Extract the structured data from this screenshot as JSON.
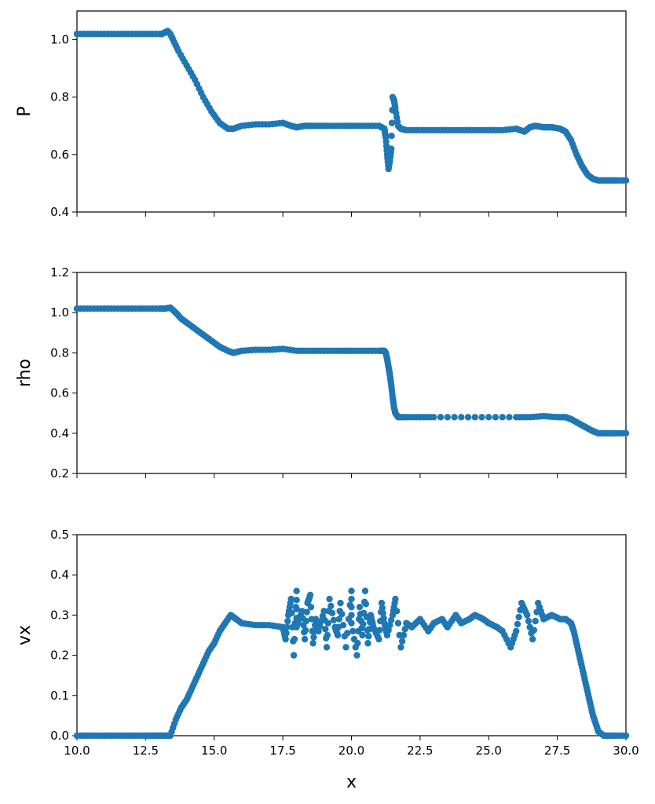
{
  "chart_data": [
    {
      "type": "scatter",
      "ylabel": "P",
      "xlim": [
        10,
        30
      ],
      "ylim": [
        0.4,
        1.1
      ],
      "yticks": [
        "0.4",
        "0.6",
        "0.8",
        "1.0"
      ],
      "ytick_values": [
        0.4,
        0.6,
        0.8,
        1.0
      ],
      "color": "#1f77b4",
      "x": [
        10.0,
        10.5,
        11.0,
        11.5,
        12.0,
        12.5,
        13.0,
        13.1,
        13.2,
        13.3,
        13.4,
        13.5,
        13.7,
        14.0,
        14.3,
        14.6,
        14.9,
        15.2,
        15.5,
        15.7,
        16.0,
        16.5,
        17.0,
        17.5,
        17.8,
        18.0,
        18.3,
        18.6,
        19.0,
        19.5,
        20.0,
        20.5,
        21.0,
        21.2,
        21.25,
        21.3,
        21.35,
        21.4,
        21.45,
        21.5,
        21.55,
        21.6,
        21.7,
        21.8,
        22.0,
        22.5,
        23.0,
        23.5,
        24.0,
        24.5,
        25.0,
        25.5,
        26.0,
        26.3,
        26.5,
        26.7,
        27.0,
        27.3,
        27.6,
        27.8,
        28.0,
        28.2,
        28.4,
        28.6,
        28.8,
        29.0,
        29.3,
        29.6,
        30.0
      ],
      "y": [
        1.02,
        1.02,
        1.02,
        1.02,
        1.02,
        1.02,
        1.02,
        1.02,
        1.025,
        1.03,
        1.02,
        1.0,
        0.96,
        0.91,
        0.86,
        0.8,
        0.75,
        0.71,
        0.69,
        0.69,
        0.7,
        0.705,
        0.705,
        0.71,
        0.7,
        0.695,
        0.7,
        0.7,
        0.7,
        0.7,
        0.7,
        0.7,
        0.7,
        0.69,
        0.66,
        0.6,
        0.55,
        0.58,
        0.62,
        0.8,
        0.79,
        0.76,
        0.7,
        0.69,
        0.685,
        0.685,
        0.685,
        0.685,
        0.685,
        0.685,
        0.685,
        0.685,
        0.69,
        0.68,
        0.695,
        0.7,
        0.695,
        0.695,
        0.69,
        0.68,
        0.65,
        0.6,
        0.56,
        0.53,
        0.515,
        0.51,
        0.51,
        0.51,
        0.51
      ]
    },
    {
      "type": "scatter",
      "ylabel": "rho",
      "xlim": [
        10,
        30
      ],
      "ylim": [
        0.2,
        1.2
      ],
      "yticks": [
        "0.2",
        "0.4",
        "0.6",
        "0.8",
        "1.0",
        "1.2"
      ],
      "ytick_values": [
        0.2,
        0.4,
        0.6,
        0.8,
        1.0,
        1.2
      ],
      "color": "#1f77b4",
      "x": [
        10.0,
        10.5,
        11.0,
        11.5,
        12.0,
        12.5,
        13.0,
        13.2,
        13.4,
        13.6,
        13.8,
        14.0,
        14.3,
        14.6,
        14.9,
        15.2,
        15.5,
        15.7,
        16.0,
        16.5,
        17.0,
        17.5,
        18.0,
        18.5,
        19.0,
        19.5,
        20.0,
        20.5,
        21.0,
        21.2,
        21.25,
        21.3,
        21.35,
        21.4,
        21.45,
        21.5,
        21.55,
        21.6,
        21.7,
        22.0,
        22.5,
        23.0,
        24.0,
        25.0,
        26.0,
        26.5,
        27.0,
        27.5,
        27.8,
        28.0,
        28.2,
        28.4,
        28.6,
        28.8,
        29.0,
        29.3,
        29.6,
        30.0
      ],
      "y": [
        1.02,
        1.02,
        1.02,
        1.02,
        1.02,
        1.02,
        1.02,
        1.02,
        1.025,
        1.0,
        0.97,
        0.95,
        0.92,
        0.89,
        0.86,
        0.83,
        0.81,
        0.8,
        0.81,
        0.815,
        0.815,
        0.82,
        0.81,
        0.81,
        0.81,
        0.81,
        0.81,
        0.81,
        0.81,
        0.81,
        0.8,
        0.77,
        0.73,
        0.69,
        0.64,
        0.58,
        0.53,
        0.5,
        0.48,
        0.48,
        0.48,
        0.48,
        0.48,
        0.48,
        0.48,
        0.48,
        0.485,
        0.48,
        0.48,
        0.47,
        0.455,
        0.44,
        0.425,
        0.41,
        0.4,
        0.4,
        0.4,
        0.4
      ]
    },
    {
      "type": "scatter",
      "xlabel": "x",
      "ylabel": "vx",
      "xlim": [
        10,
        30
      ],
      "ylim": [
        0.0,
        0.5
      ],
      "xticks": [
        "10.0",
        "12.5",
        "15.0",
        "17.5",
        "20.0",
        "22.5",
        "25.0",
        "27.5",
        "30.0"
      ],
      "xtick_values": [
        10,
        12.5,
        15,
        17.5,
        20,
        22.5,
        25,
        27.5,
        30
      ],
      "yticks": [
        "0.0",
        "0.1",
        "0.2",
        "0.3",
        "0.4",
        "0.5"
      ],
      "ytick_values": [
        0.0,
        0.1,
        0.2,
        0.3,
        0.4,
        0.5
      ],
      "color": "#1f77b4",
      "x": [
        10.0,
        10.5,
        11.0,
        11.5,
        12.0,
        12.5,
        12.9,
        13.2,
        13.4,
        13.6,
        13.8,
        14.0,
        14.2,
        14.4,
        14.6,
        14.8,
        15.0,
        15.2,
        15.4,
        15.6,
        15.8,
        16.0,
        16.5,
        17.0,
        17.5,
        17.6,
        17.7,
        17.8,
        17.9,
        18.0,
        18.0,
        18.2,
        18.3,
        18.4,
        18.5,
        18.6,
        18.7,
        18.8,
        19.0,
        19.1,
        19.2,
        19.4,
        19.5,
        19.6,
        19.8,
        20.0,
        20.0,
        20.2,
        20.3,
        20.4,
        20.5,
        20.6,
        20.7,
        20.8,
        21.0,
        21.1,
        21.2,
        21.3,
        21.5,
        21.6,
        21.8,
        22.0,
        22.2,
        22.5,
        22.8,
        23.0,
        23.3,
        23.5,
        23.8,
        24.0,
        24.3,
        24.5,
        24.8,
        25.0,
        25.3,
        25.5,
        25.8,
        26.0,
        26.2,
        26.4,
        26.6,
        26.8,
        27.0,
        27.3,
        27.6,
        27.8,
        28.0,
        28.1,
        28.2,
        28.3,
        28.4,
        28.5,
        28.6,
        28.7,
        28.8,
        28.9,
        29.0,
        29.2,
        29.5,
        30.0
      ],
      "y": [
        0.0,
        0.0,
        0.0,
        0.0,
        0.0,
        0.0,
        0.0,
        0.0,
        0.0,
        0.04,
        0.07,
        0.09,
        0.12,
        0.15,
        0.18,
        0.21,
        0.23,
        0.26,
        0.28,
        0.3,
        0.29,
        0.28,
        0.275,
        0.275,
        0.27,
        0.24,
        0.3,
        0.34,
        0.2,
        0.36,
        0.27,
        0.31,
        0.24,
        0.33,
        0.35,
        0.23,
        0.29,
        0.26,
        0.31,
        0.22,
        0.34,
        0.27,
        0.25,
        0.33,
        0.22,
        0.36,
        0.28,
        0.2,
        0.32,
        0.25,
        0.36,
        0.23,
        0.3,
        0.27,
        0.24,
        0.33,
        0.28,
        0.25,
        0.3,
        0.34,
        0.22,
        0.28,
        0.27,
        0.29,
        0.26,
        0.28,
        0.29,
        0.27,
        0.3,
        0.28,
        0.29,
        0.3,
        0.29,
        0.28,
        0.27,
        0.26,
        0.22,
        0.26,
        0.33,
        0.3,
        0.24,
        0.33,
        0.29,
        0.3,
        0.29,
        0.29,
        0.28,
        0.26,
        0.23,
        0.2,
        0.17,
        0.14,
        0.11,
        0.08,
        0.05,
        0.03,
        0.01,
        0.0,
        0.0,
        0.0
      ]
    }
  ]
}
